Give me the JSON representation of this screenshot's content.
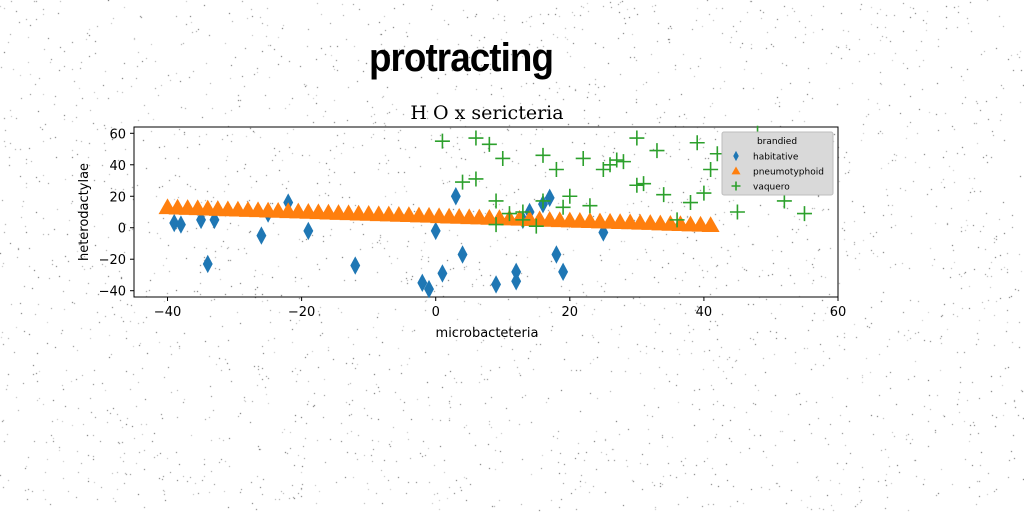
{
  "page": {
    "banner": "protracting"
  },
  "chart_data": {
    "type": "scatter",
    "title": "H O x sericteria",
    "xlabel": "microbacteteria",
    "ylabel": "heterodactylae",
    "xlim": [
      -45,
      60
    ],
    "ylim": [
      -44,
      64
    ],
    "xticks": [
      -40,
      -20,
      0,
      20,
      40,
      60
    ],
    "yticks": [
      -40,
      -20,
      0,
      20,
      40,
      60
    ],
    "grid": false,
    "legend": {
      "title": "brandied",
      "placement": "top-right"
    },
    "colors": {
      "habitative": "#1f77b4",
      "pneumotyphoid": "#ff7f0e",
      "vaquero": "#2ca02c",
      "axis": "#000000"
    },
    "series": [
      {
        "name": "habitative",
        "marker": "diamond",
        "points": [
          [
            -39,
            3
          ],
          [
            -38,
            2
          ],
          [
            -35,
            5
          ],
          [
            -34,
            -23
          ],
          [
            -33,
            5
          ],
          [
            -26,
            -5
          ],
          [
            -25,
            9
          ],
          [
            -22,
            16
          ],
          [
            -19,
            -2
          ],
          [
            -12,
            -24
          ],
          [
            -2,
            -35
          ],
          [
            -1,
            -39
          ],
          [
            0,
            -2
          ],
          [
            1,
            -29
          ],
          [
            3,
            20
          ],
          [
            4,
            -17
          ],
          [
            9,
            -36
          ],
          [
            12,
            -28
          ],
          [
            12,
            -34
          ],
          [
            13,
            5
          ],
          [
            14,
            10
          ],
          [
            16,
            15
          ],
          [
            17,
            19
          ],
          [
            18,
            -17
          ],
          [
            19,
            -28
          ],
          [
            25,
            -3
          ]
        ]
      },
      {
        "name": "pneumotyphoid",
        "marker": "triangle",
        "points": [
          [
            -40,
            12.9
          ],
          [
            -38.5,
            12.7
          ],
          [
            -37,
            12.5
          ],
          [
            -35.5,
            12.3
          ],
          [
            -34,
            12.1
          ],
          [
            -32.5,
            11.8
          ],
          [
            -31,
            11.6
          ],
          [
            -29.5,
            11.4
          ],
          [
            -28,
            11.2
          ],
          [
            -26.5,
            11.0
          ],
          [
            -25,
            10.8
          ],
          [
            -23.5,
            10.6
          ],
          [
            -22,
            10.4
          ],
          [
            -20.5,
            10.2
          ],
          [
            -19,
            10.0
          ],
          [
            -17.5,
            9.8
          ],
          [
            -16,
            9.5
          ],
          [
            -14.5,
            9.3
          ],
          [
            -13,
            9.1
          ],
          [
            -11.5,
            8.9
          ],
          [
            -10,
            8.7
          ],
          [
            -8.5,
            8.5
          ],
          [
            -7,
            8.3
          ],
          [
            -5.5,
            8.1
          ],
          [
            -4,
            7.9
          ],
          [
            -2.5,
            7.7
          ],
          [
            -1,
            7.5
          ],
          [
            0.5,
            7.2
          ],
          [
            2,
            7.0
          ],
          [
            3.5,
            6.8
          ],
          [
            5,
            6.6
          ],
          [
            6.5,
            6.4
          ],
          [
            8,
            6.2
          ],
          [
            9.5,
            6.0
          ],
          [
            11,
            5.8
          ],
          [
            12.5,
            5.6
          ],
          [
            14,
            5.4
          ],
          [
            15.5,
            5.2
          ],
          [
            17,
            4.9
          ],
          [
            18.5,
            4.7
          ],
          [
            20,
            4.5
          ],
          [
            21.5,
            4.3
          ],
          [
            23,
            4.1
          ],
          [
            24.5,
            3.9
          ],
          [
            26,
            3.7
          ],
          [
            27.5,
            3.5
          ],
          [
            29,
            3.3
          ],
          [
            30.5,
            3.1
          ],
          [
            32,
            2.9
          ],
          [
            33.5,
            2.6
          ],
          [
            35,
            2.4
          ],
          [
            36.5,
            2.2
          ],
          [
            38,
            2.0
          ],
          [
            39.5,
            1.8
          ],
          [
            41,
            1.6
          ]
        ]
      },
      {
        "name": "vaquero",
        "marker": "plus",
        "points": [
          [
            1,
            55
          ],
          [
            4,
            29
          ],
          [
            6,
            31
          ],
          [
            6,
            57
          ],
          [
            8,
            53
          ],
          [
            9,
            17
          ],
          [
            9,
            2
          ],
          [
            10,
            44
          ],
          [
            11,
            9
          ],
          [
            13,
            5
          ],
          [
            13,
            10
          ],
          [
            15,
            1
          ],
          [
            16,
            46
          ],
          [
            16,
            17
          ],
          [
            18,
            37
          ],
          [
            19,
            13
          ],
          [
            20,
            20
          ],
          [
            22,
            44
          ],
          [
            23,
            14
          ],
          [
            25,
            37
          ],
          [
            26,
            40
          ],
          [
            27,
            43
          ],
          [
            28,
            42
          ],
          [
            30,
            57
          ],
          [
            30,
            27
          ],
          [
            31,
            28
          ],
          [
            33,
            49
          ],
          [
            34,
            21
          ],
          [
            36,
            5
          ],
          [
            38,
            16
          ],
          [
            39,
            54
          ],
          [
            40,
            22
          ],
          [
            41,
            37
          ],
          [
            42,
            47
          ],
          [
            45,
            10
          ],
          [
            47,
            55
          ],
          [
            48,
            60
          ],
          [
            52,
            17
          ],
          [
            55,
            9
          ],
          [
            56,
            51
          ]
        ]
      }
    ]
  }
}
